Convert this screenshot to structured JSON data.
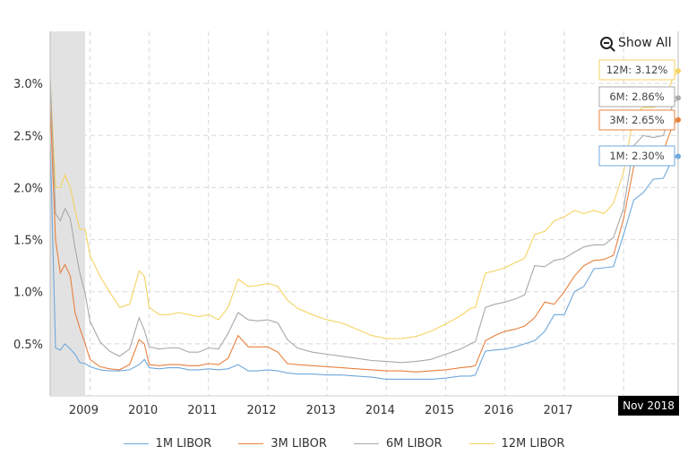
{
  "controls": {
    "show_all": "Show All"
  },
  "badges": {
    "m12": "12M: 3.12%",
    "m6": "6M: 2.86%",
    "m3": "3M: 2.65%",
    "m1": "1M: 2.30%"
  },
  "cursor_label": "Nov 2018",
  "colors": {
    "m1": "#6fa8dc",
    "m3": "#e8803e",
    "m6": "#a8a8a8",
    "m12": "#f5d362",
    "recession": "#e2e2e2"
  },
  "chart_data": {
    "type": "line",
    "title": "",
    "xlabel": "",
    "ylabel": "",
    "xlim": [
      2008.33,
      2018.92
    ],
    "ylim": [
      0,
      3.5
    ],
    "grid": true,
    "legend_position": "bottom",
    "x_tick_labels": [
      "2009",
      "2010",
      "2011",
      "2012",
      "2013",
      "2014",
      "2015",
      "2016",
      "2017"
    ],
    "y_tick_labels": [
      "0.5%",
      "1.0%",
      "1.5%",
      "2.0%",
      "2.5%",
      "3.0%"
    ],
    "shaded_region": [
      2008.33,
      2008.92
    ],
    "x": [
      2008.33,
      2008.42,
      2008.5,
      2008.58,
      2008.67,
      2008.75,
      2008.83,
      2008.92,
      2009.0,
      2009.17,
      2009.33,
      2009.5,
      2009.67,
      2009.83,
      2009.92,
      2010.0,
      2010.17,
      2010.33,
      2010.5,
      2010.67,
      2010.83,
      2011.0,
      2011.17,
      2011.33,
      2011.5,
      2011.67,
      2011.83,
      2012.0,
      2012.17,
      2012.33,
      2012.5,
      2012.75,
      2013.0,
      2013.25,
      2013.5,
      2013.75,
      2014.0,
      2014.25,
      2014.5,
      2014.75,
      2015.0,
      2015.25,
      2015.42,
      2015.5,
      2015.67,
      2015.83,
      2016.0,
      2016.17,
      2016.33,
      2016.5,
      2016.67,
      2016.83,
      2017.0,
      2017.17,
      2017.33,
      2017.5,
      2017.67,
      2017.83,
      2018.0,
      2018.17,
      2018.33,
      2018.5,
      2018.67,
      2018.83,
      2018.92
    ],
    "series": [
      {
        "name": "1M LIBOR",
        "values": [
          2.45,
          0.46,
          0.44,
          0.5,
          0.45,
          0.4,
          0.32,
          0.31,
          0.28,
          0.25,
          0.24,
          0.24,
          0.25,
          0.3,
          0.35,
          0.27,
          0.26,
          0.27,
          0.27,
          0.25,
          0.25,
          0.26,
          0.25,
          0.26,
          0.3,
          0.24,
          0.24,
          0.25,
          0.24,
          0.22,
          0.21,
          0.21,
          0.2,
          0.2,
          0.19,
          0.18,
          0.16,
          0.16,
          0.16,
          0.16,
          0.17,
          0.19,
          0.19,
          0.2,
          0.43,
          0.44,
          0.45,
          0.47,
          0.5,
          0.53,
          0.62,
          0.78,
          0.78,
          1.0,
          1.05,
          1.22,
          1.23,
          1.24,
          1.55,
          1.88,
          1.95,
          2.08,
          2.09,
          2.28,
          2.3
        ]
      },
      {
        "name": "3M LIBOR",
        "values": [
          2.8,
          1.5,
          1.18,
          1.26,
          1.15,
          0.8,
          0.65,
          0.5,
          0.35,
          0.28,
          0.26,
          0.25,
          0.3,
          0.54,
          0.5,
          0.3,
          0.29,
          0.3,
          0.3,
          0.29,
          0.29,
          0.31,
          0.3,
          0.36,
          0.58,
          0.47,
          0.47,
          0.47,
          0.42,
          0.31,
          0.3,
          0.29,
          0.28,
          0.27,
          0.26,
          0.25,
          0.24,
          0.24,
          0.23,
          0.24,
          0.25,
          0.27,
          0.28,
          0.29,
          0.53,
          0.58,
          0.62,
          0.64,
          0.67,
          0.75,
          0.9,
          0.88,
          1.0,
          1.15,
          1.25,
          1.3,
          1.31,
          1.35,
          1.7,
          2.2,
          2.3,
          2.33,
          2.35,
          2.6,
          2.65
        ]
      },
      {
        "name": "6M LIBOR",
        "values": [
          3.05,
          1.75,
          1.68,
          1.8,
          1.7,
          1.42,
          1.18,
          0.98,
          0.72,
          0.52,
          0.43,
          0.38,
          0.45,
          0.75,
          0.63,
          0.47,
          0.45,
          0.46,
          0.46,
          0.42,
          0.42,
          0.46,
          0.45,
          0.6,
          0.8,
          0.73,
          0.72,
          0.73,
          0.7,
          0.54,
          0.46,
          0.42,
          0.4,
          0.38,
          0.36,
          0.34,
          0.33,
          0.32,
          0.33,
          0.35,
          0.4,
          0.45,
          0.5,
          0.52,
          0.85,
          0.88,
          0.9,
          0.93,
          0.97,
          1.25,
          1.24,
          1.3,
          1.32,
          1.38,
          1.43,
          1.45,
          1.45,
          1.52,
          1.8,
          2.4,
          2.5,
          2.48,
          2.5,
          2.8,
          2.86
        ]
      },
      {
        "name": "12M LIBOR",
        "values": [
          3.05,
          2.0,
          2.0,
          2.12,
          2.0,
          1.78,
          1.6,
          1.6,
          1.35,
          1.15,
          1.0,
          0.85,
          0.88,
          1.2,
          1.15,
          0.85,
          0.78,
          0.78,
          0.8,
          0.78,
          0.76,
          0.78,
          0.73,
          0.85,
          1.12,
          1.05,
          1.06,
          1.08,
          1.05,
          0.92,
          0.84,
          0.78,
          0.73,
          0.7,
          0.64,
          0.58,
          0.55,
          0.55,
          0.57,
          0.62,
          0.69,
          0.77,
          0.84,
          0.85,
          1.18,
          1.2,
          1.23,
          1.28,
          1.32,
          1.55,
          1.58,
          1.68,
          1.72,
          1.78,
          1.75,
          1.78,
          1.75,
          1.85,
          2.15,
          2.7,
          2.77,
          2.77,
          2.8,
          3.05,
          3.12
        ]
      }
    ]
  },
  "legend": [
    {
      "label": "1M LIBOR"
    },
    {
      "label": "3M LIBOR"
    },
    {
      "label": "6M LIBOR"
    },
    {
      "label": "12M LIBOR"
    }
  ]
}
